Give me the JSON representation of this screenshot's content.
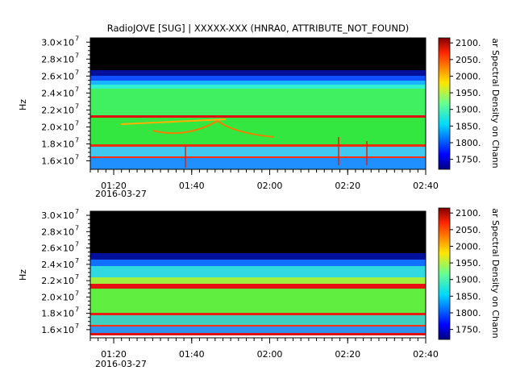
{
  "title": "RadioJOVE [SUG] | XXXXX-XXX (HNRA0, ATTRIBUTE_NOT_FOUND)",
  "chart_data": [
    {
      "type": "heatmap",
      "title": "RadioJOVE [SUG] | XXXXX-XXX (HNRA0, ATTRIBUTE_NOT_FOUND)",
      "ylabel": "Hz",
      "y_tick_labels": [
        "1.6×10",
        "1.8×10",
        "2.0×10",
        "2.2×10",
        "2.4×10",
        "2.6×10",
        "2.8×10",
        "3.0×10"
      ],
      "y_tick_exponent": "7",
      "y_ticks": [
        16000000,
        18000000,
        20000000,
        22000000,
        24000000,
        26000000,
        28000000,
        30000000
      ],
      "ylim": [
        15000000,
        30500000
      ],
      "x_tick_labels": [
        "01:20",
        "01:40",
        "02:00",
        "02:20",
        "02:40"
      ],
      "x_date_label": "2016-03-27",
      "xlim": [
        "01:14",
        "02:40"
      ],
      "colorbar_label": "ar Spectral Density on Chann",
      "colorbar_ticks": [
        "2100.",
        "2050.",
        "2000.",
        "1950.",
        "1900.",
        "1850.",
        "1800.",
        "1750."
      ],
      "colorbar_values": [
        2100,
        2050,
        2000,
        1950,
        1900,
        1850,
        1800,
        1750
      ],
      "colorbar_range": [
        1720,
        2115
      ],
      "colormap": "jet",
      "grid": false
    },
    {
      "type": "heatmap",
      "title": "",
      "ylabel": "Hz",
      "y_tick_labels": [
        "1.6×10",
        "1.8×10",
        "2.0×10",
        "2.2×10",
        "2.4×10",
        "2.6×10",
        "2.8×10",
        "3.0×10"
      ],
      "y_tick_exponent": "7",
      "y_ticks": [
        16000000,
        18000000,
        20000000,
        22000000,
        24000000,
        26000000,
        28000000,
        30000000
      ],
      "ylim": [
        15000000,
        30500000
      ],
      "x_tick_labels": [
        "01:20",
        "01:40",
        "02:00",
        "02:20",
        "02:40"
      ],
      "x_date_label": "2016-03-27",
      "xlim": [
        "01:14",
        "02:40"
      ],
      "colorbar_label": "ar Spectral Density on Chann",
      "colorbar_ticks": [
        "2100.",
        "2050.",
        "2000.",
        "1950.",
        "1900.",
        "1850.",
        "1800.",
        "1750."
      ],
      "colorbar_values": [
        2100,
        2050,
        2000,
        1950,
        1900,
        1850,
        1800,
        1750
      ],
      "colorbar_range": [
        1720,
        2115
      ],
      "colormap": "jet",
      "grid": false
    }
  ]
}
